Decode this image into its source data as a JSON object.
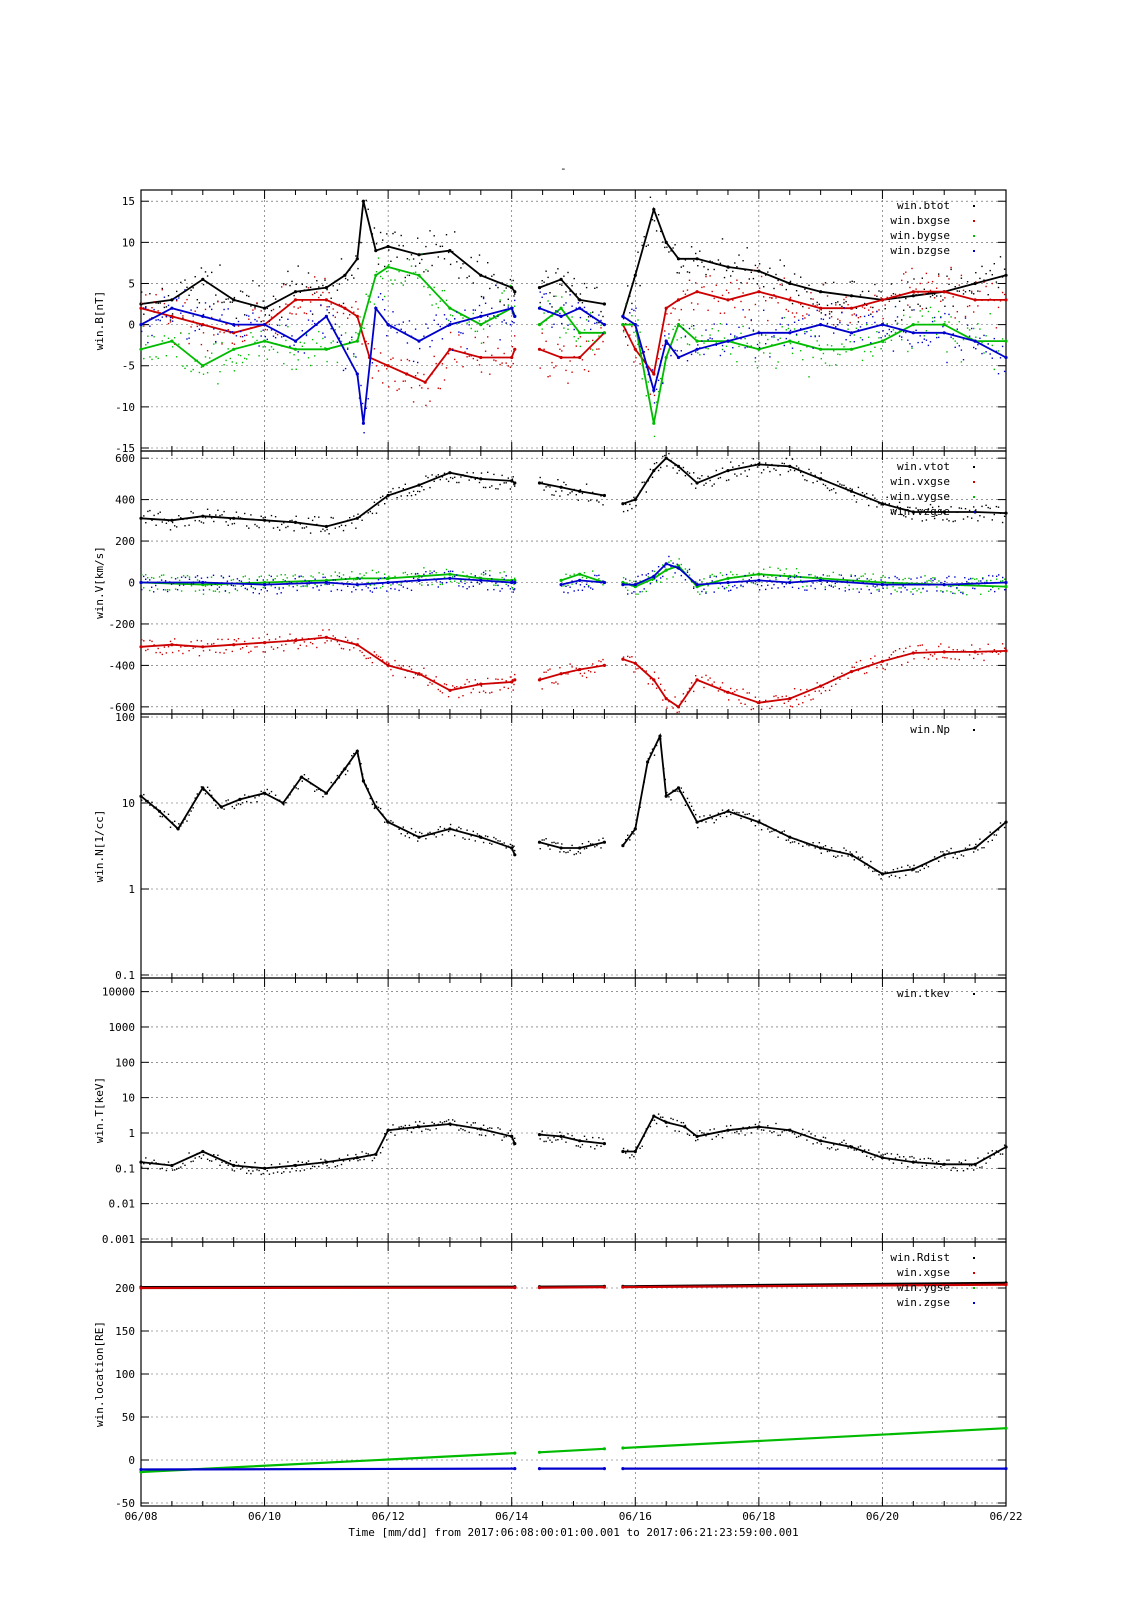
{
  "figure": {
    "title": "-",
    "x_axis_label": "Time [mm/dd]  from 2017:06:08:00:01:00.001  to  2017:06:21:23:59:00.001",
    "x_tick_labels": [
      "06/08",
      "06/10",
      "06/12",
      "06/14",
      "06/16",
      "06/18",
      "06/20",
      "06/22"
    ]
  },
  "chart_data": [
    {
      "type": "scatter",
      "ylabel": "win.B[nT]",
      "ylim": [
        -15,
        16
      ],
      "yscale": "linear",
      "yticks": [
        15,
        10,
        5,
        0,
        -5,
        -10,
        -15
      ],
      "ytick_labels": [
        "15",
        "10",
        "5",
        "0",
        "-5",
        "-10",
        "-15"
      ],
      "grid": true,
      "legend_position": "top-right",
      "series": [
        {
          "name": "win.btot",
          "color": "#000000",
          "x": [
            8.0,
            8.5,
            9.0,
            9.5,
            10.0,
            10.5,
            11.0,
            11.3,
            11.5,
            11.6,
            11.8,
            12.0,
            12.5,
            13.0,
            13.5,
            14.0,
            14.05,
            14.45,
            14.8,
            15.1,
            15.5,
            15.8,
            16.0,
            16.3,
            16.5,
            16.7,
            17.0,
            17.5,
            18.0,
            18.5,
            19.0,
            19.5,
            20.0,
            20.5,
            21.0,
            21.5,
            22.0
          ],
          "y": [
            2.5,
            3,
            5.5,
            3,
            2,
            4,
            4.5,
            6,
            8,
            15,
            9,
            9.5,
            8.5,
            9,
            6,
            4.5,
            4,
            4.5,
            5.5,
            3,
            2.5,
            1,
            6,
            14,
            10,
            8,
            8,
            7,
            6.5,
            5,
            4,
            3.5,
            3,
            3.5,
            4,
            5,
            6
          ]
        },
        {
          "name": "win.bxgse",
          "color": "#cc0000",
          "x": [
            8.0,
            8.5,
            9.0,
            9.5,
            10.0,
            10.5,
            11.0,
            11.3,
            11.5,
            11.7,
            12.0,
            12.3,
            12.6,
            13.0,
            13.5,
            14.0,
            14.05,
            14.45,
            14.8,
            15.1,
            15.5,
            15.8,
            16.0,
            16.3,
            16.5,
            16.7,
            17.0,
            17.5,
            18.0,
            18.5,
            19.0,
            19.5,
            20.0,
            20.5,
            21.0,
            21.5,
            22.0
          ],
          "y": [
            2,
            1,
            0,
            -1,
            0,
            3,
            3,
            2,
            1,
            -4,
            -5,
            -6,
            -7,
            -3,
            -4,
            -4,
            -3,
            -3,
            -4,
            -4,
            -1,
            0,
            -3,
            -6,
            2,
            3,
            4,
            3,
            4,
            3,
            2,
            2,
            3,
            4,
            4,
            3,
            3
          ]
        },
        {
          "name": "win.bygse",
          "color": "#00bb00",
          "x": [
            8.0,
            8.5,
            9.0,
            9.5,
            10.0,
            10.5,
            11.0,
            11.5,
            11.8,
            12.0,
            12.5,
            13.0,
            13.5,
            14.0,
            14.05,
            14.45,
            14.8,
            15.1,
            15.5,
            15.8,
            16.0,
            16.3,
            16.5,
            16.7,
            17.0,
            17.5,
            18.0,
            18.5,
            19.0,
            19.5,
            20.0,
            20.5,
            21.0,
            21.5,
            22.0
          ],
          "y": [
            -3,
            -2,
            -5,
            -3,
            -2,
            -3,
            -3,
            -2,
            6,
            7,
            6,
            2,
            0,
            2,
            1,
            0,
            2,
            -1,
            -1,
            0,
            0,
            -12,
            -4,
            0,
            -2,
            -2,
            -3,
            -2,
            -3,
            -3,
            -2,
            0,
            0,
            -2,
            -2
          ]
        },
        {
          "name": "win.bzgse",
          "color": "#0000cc",
          "x": [
            8.0,
            8.5,
            9.0,
            9.5,
            10.0,
            10.5,
            11.0,
            11.5,
            11.6,
            11.8,
            12.0,
            12.5,
            13.0,
            13.5,
            14.0,
            14.05,
            14.45,
            14.8,
            15.1,
            15.5,
            15.8,
            16.0,
            16.3,
            16.5,
            16.7,
            17.0,
            17.5,
            18.0,
            18.5,
            19.0,
            19.5,
            20.0,
            20.5,
            21.0,
            21.5,
            22.0
          ],
          "y": [
            0,
            2,
            1,
            0,
            0,
            -2,
            1,
            -6,
            -12,
            2,
            0,
            -2,
            0,
            1,
            2,
            1,
            2,
            1,
            2,
            0,
            1,
            0,
            -8,
            -2,
            -4,
            -3,
            -2,
            -1,
            -1,
            0,
            -1,
            0,
            -1,
            -1,
            -2,
            -4
          ]
        }
      ]
    },
    {
      "type": "scatter",
      "ylabel": "win.V[km/s]",
      "ylim": [
        -620,
        620
      ],
      "yscale": "linear",
      "yticks": [
        600,
        400,
        200,
        0,
        -200,
        -400,
        -600
      ],
      "ytick_labels": [
        "600",
        "400",
        "200",
        "0",
        "-200",
        "-400",
        "-600"
      ],
      "grid": true,
      "legend_position": "top-right",
      "series": [
        {
          "name": "win.vtot",
          "color": "#000000",
          "x": [
            8.0,
            8.5,
            9.0,
            9.5,
            10.0,
            10.5,
            11.0,
            11.5,
            12.0,
            12.5,
            13.0,
            13.5,
            14.0,
            14.05,
            14.45,
            14.8,
            15.1,
            15.5,
            15.8,
            16.0,
            16.3,
            16.5,
            16.7,
            17.0,
            17.5,
            18.0,
            18.5,
            19.0,
            19.5,
            20.0,
            20.5,
            21.0,
            21.5,
            22.0
          ],
          "y": [
            310,
            300,
            320,
            310,
            300,
            290,
            270,
            310,
            420,
            470,
            530,
            500,
            490,
            480,
            480,
            460,
            440,
            420,
            380,
            400,
            540,
            600,
            560,
            480,
            540,
            570,
            560,
            500,
            440,
            380,
            340,
            340,
            340,
            335
          ]
        },
        {
          "name": "win.vxgse",
          "color": "#cc0000",
          "x": [
            8.0,
            8.5,
            9.0,
            9.5,
            10.0,
            10.5,
            11.0,
            11.5,
            12.0,
            12.5,
            13.0,
            13.5,
            14.0,
            14.05,
            14.45,
            14.8,
            15.1,
            15.5,
            15.8,
            16.0,
            16.3,
            16.5,
            16.7,
            17.0,
            17.5,
            18.0,
            18.5,
            19.0,
            19.5,
            20.0,
            20.5,
            21.0,
            21.5,
            22.0
          ],
          "y": [
            -310,
            -300,
            -310,
            -300,
            -290,
            -280,
            -265,
            -300,
            -400,
            -440,
            -520,
            -490,
            -480,
            -470,
            -470,
            -440,
            -420,
            -400,
            -370,
            -390,
            -470,
            -560,
            -600,
            -470,
            -530,
            -580,
            -560,
            -500,
            -430,
            -380,
            -340,
            -335,
            -335,
            -330
          ]
        },
        {
          "name": "win.vygse",
          "color": "#00bb00",
          "x": [
            8.0,
            9.0,
            10.0,
            11.0,
            11.5,
            12.0,
            12.5,
            13.0,
            13.5,
            14.0,
            14.05,
            14.8,
            15.1,
            15.5,
            15.8,
            16.0,
            16.3,
            16.5,
            16.7,
            17.0,
            17.5,
            18.0,
            18.5,
            19.0,
            20.0,
            21.0,
            22.0
          ],
          "y": [
            0,
            -10,
            0,
            10,
            20,
            20,
            30,
            40,
            20,
            10,
            10,
            10,
            40,
            0,
            0,
            -20,
            20,
            60,
            80,
            -20,
            20,
            40,
            30,
            20,
            0,
            -10,
            -20
          ]
        },
        {
          "name": "win.vzgse",
          "color": "#0000cc",
          "x": [
            8.0,
            9.0,
            10.0,
            11.0,
            11.5,
            12.0,
            12.5,
            13.0,
            13.5,
            14.0,
            14.05,
            14.8,
            15.1,
            15.5,
            15.8,
            16.0,
            16.3,
            16.5,
            16.7,
            17.0,
            17.5,
            18.0,
            18.5,
            19.0,
            20.0,
            21.0,
            22.0
          ],
          "y": [
            0,
            0,
            -10,
            0,
            -10,
            0,
            10,
            20,
            10,
            0,
            0,
            -10,
            10,
            0,
            -10,
            -10,
            30,
            90,
            70,
            -10,
            0,
            10,
            0,
            10,
            -10,
            -10,
            0
          ]
        }
      ]
    },
    {
      "type": "scatter",
      "ylabel": "win.N[1/cc]",
      "ylim": [
        0.1,
        100
      ],
      "yscale": "log",
      "yticks": [
        100,
        10,
        1,
        0.1
      ],
      "ytick_labels": [
        "100",
        "10",
        "1",
        "0.1"
      ],
      "grid": true,
      "legend_position": "top-right",
      "series": [
        {
          "name": "win.Np",
          "color": "#000000",
          "x": [
            8.0,
            8.3,
            8.6,
            9.0,
            9.3,
            9.6,
            10.0,
            10.3,
            10.6,
            11.0,
            11.3,
            11.5,
            11.6,
            11.8,
            12.0,
            12.5,
            13.0,
            13.5,
            14.0,
            14.05,
            14.45,
            14.8,
            15.1,
            15.5,
            15.8,
            16.0,
            16.2,
            16.4,
            16.5,
            16.7,
            17.0,
            17.5,
            18.0,
            18.5,
            19.0,
            19.5,
            20.0,
            20.5,
            21.0,
            21.5,
            22.0
          ],
          "y": [
            12,
            8,
            5,
            15,
            9,
            11,
            13,
            10,
            20,
            13,
            25,
            40,
            18,
            9,
            6,
            4,
            5,
            4,
            3,
            2.5,
            3.5,
            3,
            3,
            3.5,
            3.2,
            5,
            30,
            60,
            12,
            15,
            6,
            8,
            6,
            4,
            3,
            2.5,
            1.5,
            1.7,
            2.5,
            3,
            6
          ]
        }
      ]
    },
    {
      "type": "scatter",
      "ylabel": "win.T[keV]",
      "ylim": [
        0.001,
        20000
      ],
      "yscale": "log",
      "yticks": [
        10000,
        1000,
        100,
        10,
        1,
        0.1,
        0.01,
        0.001
      ],
      "ytick_labels": [
        "10000",
        "1000",
        "100",
        "10",
        "1",
        "0.1",
        "0.01",
        "0.001"
      ],
      "grid": true,
      "legend_position": "top-right",
      "series": [
        {
          "name": "win.tkev",
          "color": "#000000",
          "x": [
            8.0,
            8.5,
            9.0,
            9.5,
            10.0,
            10.5,
            11.0,
            11.5,
            11.8,
            12.0,
            12.5,
            13.0,
            13.5,
            14.0,
            14.05,
            14.45,
            14.8,
            15.1,
            15.5,
            15.8,
            16.0,
            16.3,
            16.5,
            16.8,
            17.0,
            17.5,
            18.0,
            18.5,
            19.0,
            19.5,
            20.0,
            20.5,
            21.0,
            21.5,
            22.0
          ],
          "y": [
            0.15,
            0.12,
            0.3,
            0.12,
            0.1,
            0.12,
            0.15,
            0.2,
            0.25,
            1.2,
            1.5,
            1.8,
            1.3,
            0.8,
            0.5,
            0.9,
            0.8,
            0.6,
            0.5,
            0.3,
            0.3,
            3,
            2,
            1.5,
            0.8,
            1.2,
            1.5,
            1.2,
            0.6,
            0.4,
            0.2,
            0.15,
            0.13,
            0.13,
            0.4
          ]
        }
      ]
    },
    {
      "type": "scatter",
      "ylabel": "win.location[RE]",
      "ylim": [
        -50,
        250
      ],
      "yscale": "linear",
      "yticks": [
        200,
        150,
        100,
        50,
        0,
        -50
      ],
      "ytick_labels": [
        "200",
        "150",
        "100",
        "50",
        "0",
        "-50"
      ],
      "grid": true,
      "legend_position": "top-right",
      "series": [
        {
          "name": "win.Rdist",
          "color": "#000000",
          "x": [
            8.0,
            14.05,
            14.45,
            15.5,
            15.8,
            22.0
          ],
          "y": [
            201,
            201.5,
            201.5,
            202,
            202,
            206
          ]
        },
        {
          "name": "win.xgse",
          "color": "#cc0000",
          "x": [
            8.0,
            14.05,
            14.45,
            15.5,
            15.8,
            22.0
          ],
          "y": [
            200,
            200.5,
            200.5,
            201,
            201,
            204
          ]
        },
        {
          "name": "win.ygse",
          "color": "#00bb00",
          "x": [
            8.0,
            14.05,
            14.45,
            15.5,
            15.8,
            22.0
          ],
          "y": [
            -14,
            8,
            9,
            13,
            14,
            37
          ]
        },
        {
          "name": "win.zgse",
          "color": "#0000cc",
          "x": [
            8.0,
            14.05,
            14.45,
            15.5,
            15.8,
            22.0
          ],
          "y": [
            -11,
            -10,
            -10,
            -10,
            -10,
            -10
          ]
        }
      ]
    }
  ]
}
